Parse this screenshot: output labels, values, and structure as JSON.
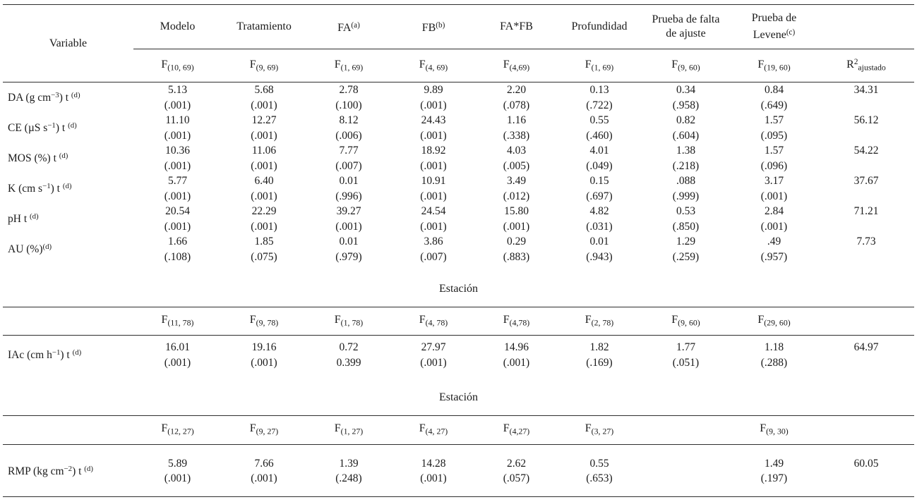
{
  "table": {
    "variable_header": "Variable",
    "columns": [
      "Modelo",
      "Tratamiento",
      "FA^{(a)}",
      "FB^{(b)}",
      "FA*FB",
      "Profundidad",
      "Prueba de falta de ajuste",
      "Prueba de Levene^{(c)}"
    ],
    "sections": [
      {
        "df_row": [
          "F_{(10, 69)}",
          "F_{(9, 69)}",
          "F_{(1, 69)}",
          "F_{(4, 69)}",
          "F_{(4,69)}",
          "F_{(1, 69)}",
          "F_{(9, 60)}",
          "F_{(19, 60)}",
          "R^{2}_{ajustado}"
        ],
        "rows": [
          {
            "label": "DA (g cm^{−3}) t ^{(d)}",
            "cells": [
              [
                "5.13",
                "(.001)"
              ],
              [
                "5.68",
                "(.001)"
              ],
              [
                "2.78",
                "(.100)"
              ],
              [
                "9.89",
                "(.001)"
              ],
              [
                "2.20",
                "(.078)"
              ],
              [
                "0.13",
                "(.722)"
              ],
              [
                "0.34",
                "(.958)"
              ],
              [
                "0.84",
                "(.649)"
              ]
            ],
            "r2": "34.31"
          },
          {
            "label": "CE (µS s^{−1}) t ^{(d)}",
            "cells": [
              [
                "11.10",
                "(.001)"
              ],
              [
                "12.27",
                "(.001)"
              ],
              [
                "8.12",
                "(.006)"
              ],
              [
                "24.43",
                "(.001)"
              ],
              [
                "1.16",
                "(.338)"
              ],
              [
                "0.55",
                "(.460)"
              ],
              [
                "0.82",
                "(.604)"
              ],
              [
                "1.57",
                "(.095)"
              ]
            ],
            "r2": "56.12"
          },
          {
            "label": "MOS (%) t ^{(d)}",
            "cells": [
              [
                "10.36",
                "(.001)"
              ],
              [
                "11.06",
                "(.001)"
              ],
              [
                "7.77",
                "(.007)"
              ],
              [
                "18.92",
                "(.001)"
              ],
              [
                "4.03",
                "(.005)"
              ],
              [
                "4.01",
                "(.049)"
              ],
              [
                "1.38",
                "(.218)"
              ],
              [
                "1.57",
                "(.096)"
              ]
            ],
            "r2": "54.22"
          },
          {
            "label": "K (cm s^{−1}) t ^{(d)}",
            "cells": [
              [
                "5.77",
                "(.001)"
              ],
              [
                "6.40",
                "(.001)"
              ],
              [
                "0.01",
                "(.996)"
              ],
              [
                "10.91",
                "(.001)"
              ],
              [
                "3.49",
                "(.012)"
              ],
              [
                "0.15",
                "(.697)"
              ],
              [
                ".088",
                "(.999)"
              ],
              [
                "3.17",
                "(.001)"
              ]
            ],
            "r2": "37.67"
          },
          {
            "label": "pH t ^{(d)}",
            "cells": [
              [
                "20.54",
                "(.001)"
              ],
              [
                "22.29",
                "(.001)"
              ],
              [
                "39.27",
                "(.001)"
              ],
              [
                "24.54",
                "(.001)"
              ],
              [
                "15.80",
                "(.001)"
              ],
              [
                "4.82",
                "(.031)"
              ],
              [
                "0.53",
                "(.850)"
              ],
              [
                "2.84",
                "(.001)"
              ]
            ],
            "r2": "71.21"
          },
          {
            "label": "AU (%)^{(d)}",
            "cells": [
              [
                "1.66",
                "(.108)"
              ],
              [
                "1.85",
                "(.075)"
              ],
              [
                "0.01",
                "(.979)"
              ],
              [
                "3.86",
                "(.007)"
              ],
              [
                "0.29",
                "(.883)"
              ],
              [
                "0.01",
                "(.943)"
              ],
              [
                "1.29",
                "(.259)"
              ],
              [
                ".49",
                "(.957)"
              ]
            ],
            "r2": "7.73"
          }
        ]
      },
      {
        "divider": "Estación",
        "df_row": [
          "F_{(11, 78)}",
          "F_{(9, 78)}",
          "F_{(1, 78)}",
          "F_{(4, 78)}",
          "F_{(4,78)}",
          "F_{(2, 78)}",
          "F_{(9, 60)}",
          "F_{(29, 60)}",
          ""
        ],
        "rows": [
          {
            "label": "IAc (cm h^{−1}) t ^{(d)}",
            "cells": [
              [
                "16.01",
                "(.001)"
              ],
              [
                "19.16",
                "(.001)"
              ],
              [
                "0.72",
                "0.399"
              ],
              [
                "27.97",
                "(.001)"
              ],
              [
                "14.96",
                "(.001)"
              ],
              [
                "1.82",
                "(.169)"
              ],
              [
                "1.77",
                "(.051)"
              ],
              [
                "1.18",
                "(.288)"
              ]
            ],
            "r2": "64.97"
          }
        ]
      },
      {
        "divider": "Estación",
        "df_row": [
          "F_{(12, 27)}",
          "F_{(9, 27)}",
          "F_{(1, 27)}",
          "F_{(4, 27)}",
          "F_{(4,27)}",
          "F_{(3, 27)}",
          "",
          "F_{(9, 30)}",
          ""
        ],
        "rows": [
          {
            "label": "RMP (kg cm^{−2}) t ^{(d)}",
            "cells": [
              [
                "5.89",
                "(.001)"
              ],
              [
                "7.66",
                "(.001)"
              ],
              [
                "1.39",
                "(.248)"
              ],
              [
                "14.28",
                "(.001)"
              ],
              [
                "2.62",
                "(.057)"
              ],
              [
                "0.55",
                "(.653)"
              ],
              [
                "",
                ""
              ],
              [
                "1.49",
                "(.197)"
              ]
            ],
            "r2": "60.05"
          }
        ]
      }
    ]
  }
}
